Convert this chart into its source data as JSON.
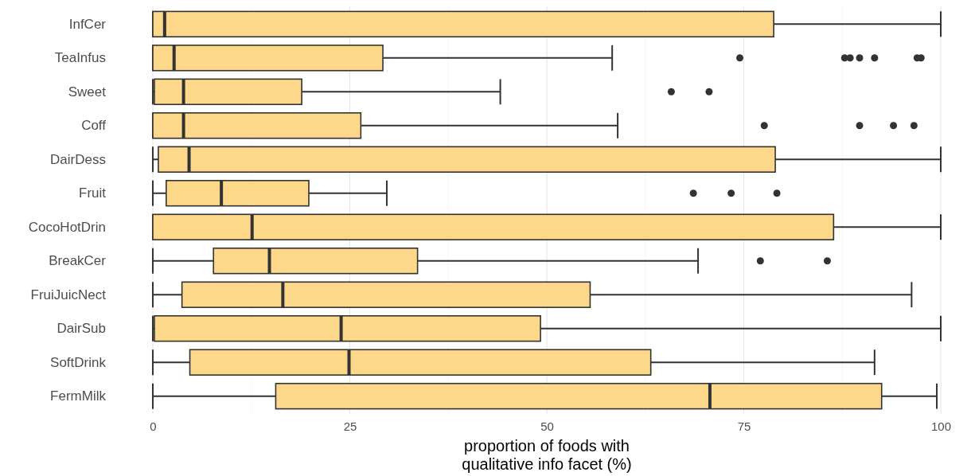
{
  "chart_data": {
    "type": "box",
    "orientation": "horizontal",
    "xlabel": "proportion of foods with\nqualitative info facet (%)",
    "categories": [
      "InfCer",
      "TeaInfus",
      "Sweet",
      "Coff",
      "DairDess",
      "Fruit",
      "CocoHotDrin",
      "BreakCer",
      "FruiJuicNect",
      "DairSub",
      "SoftDrink",
      "FermMilk"
    ],
    "color": "#fdd78a",
    "xlim": [
      0,
      100
    ],
    "xticks": [
      0,
      25,
      50,
      75,
      100
    ],
    "grid": "x",
    "boxes": [
      {
        "low": 0,
        "q1": 0,
        "median": 1.5,
        "q3": 78.8,
        "high": 100
      },
      {
        "low": 0,
        "q1": 0,
        "median": 2.7,
        "q3": 29.2,
        "high": 58.3,
        "outliers": [
          74.5,
          87.8,
          88.5,
          89.7,
          91.6,
          97,
          97.5
        ]
      },
      {
        "low": 0,
        "q1": 0.2,
        "median": 3.9,
        "q3": 18.9,
        "high": 44.1,
        "outliers": [
          65.8,
          70.6
        ]
      },
      {
        "low": 0,
        "q1": 0,
        "median": 3.9,
        "q3": 26.4,
        "high": 59,
        "outliers": [
          77.6,
          89.7,
          94,
          96.6
        ]
      },
      {
        "low": 0,
        "q1": 0.7,
        "median": 4.6,
        "q3": 79,
        "high": 100
      },
      {
        "low": 0,
        "q1": 1.7,
        "median": 8.7,
        "q3": 19.8,
        "high": 29.7,
        "outliers": [
          68.6,
          73.4,
          79.2
        ]
      },
      {
        "low": 0,
        "q1": 0,
        "median": 12.6,
        "q3": 86.4,
        "high": 100
      },
      {
        "low": 0,
        "q1": 7.7,
        "median": 14.8,
        "q3": 33.6,
        "high": 69.2,
        "outliers": [
          77.1,
          85.6
        ]
      },
      {
        "low": 0,
        "q1": 3.7,
        "median": 16.5,
        "q3": 55.5,
        "high": 96.3
      },
      {
        "low": 0,
        "q1": 0.2,
        "median": 23.9,
        "q3": 49.2,
        "high": 100
      },
      {
        "low": 0,
        "q1": 4.7,
        "median": 24.9,
        "q3": 63.2,
        "high": 91.6
      },
      {
        "low": 0,
        "q1": 15.6,
        "median": 70.7,
        "q3": 92.5,
        "high": 99.5
      }
    ]
  }
}
